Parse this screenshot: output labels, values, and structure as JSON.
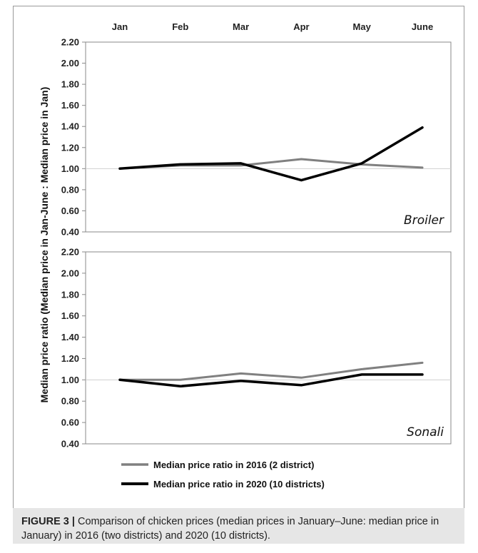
{
  "caption": {
    "label": "FIGURE 3 |",
    "text": "Comparison of chicken prices (median prices in January–June: median price in January) in 2016 (two districts) and 2020 (10 districts)."
  },
  "ylabel": "Median price ratio (Median price in Jan-June : Median price in Jan)",
  "colors": {
    "series_2016": "#808080",
    "series_2020": "#000000",
    "gridline": "#d0d0d0"
  },
  "chart_data": [
    {
      "type": "line",
      "panel_label": "Broiler",
      "categories": [
        "Jan",
        "Feb",
        "Mar",
        "Apr",
        "May",
        "June"
      ],
      "yticks": [
        "0.40",
        "0.60",
        "0.80",
        "1.00",
        "1.20",
        "1.40",
        "1.60",
        "1.80",
        "2.00",
        "2.20"
      ],
      "ylim": [
        0.4,
        2.2
      ],
      "series": [
        {
          "name": "Median price ratio in 2016 (2 district)",
          "values": [
            1.0,
            1.03,
            1.03,
            1.09,
            1.04,
            1.01
          ]
        },
        {
          "name": "Median price ratio in 2020 (10 districts)",
          "values": [
            1.0,
            1.04,
            1.05,
            0.89,
            1.05,
            1.39
          ]
        }
      ]
    },
    {
      "type": "line",
      "panel_label": "Sonali",
      "categories": [
        "Jan",
        "Feb",
        "Mar",
        "Apr",
        "May",
        "June"
      ],
      "yticks": [
        "0.40",
        "0.60",
        "0.80",
        "1.00",
        "1.20",
        "1.40",
        "1.60",
        "1.80",
        "2.00",
        "2.20"
      ],
      "ylim": [
        0.4,
        2.2
      ],
      "series": [
        {
          "name": "Median price ratio in 2016 (2 district)",
          "values": [
            1.0,
            1.0,
            1.06,
            1.02,
            1.1,
            1.16
          ]
        },
        {
          "name": "Median price ratio in 2020 (10 districts)",
          "values": [
            1.0,
            0.94,
            0.99,
            0.95,
            1.05,
            1.05
          ]
        }
      ]
    }
  ]
}
